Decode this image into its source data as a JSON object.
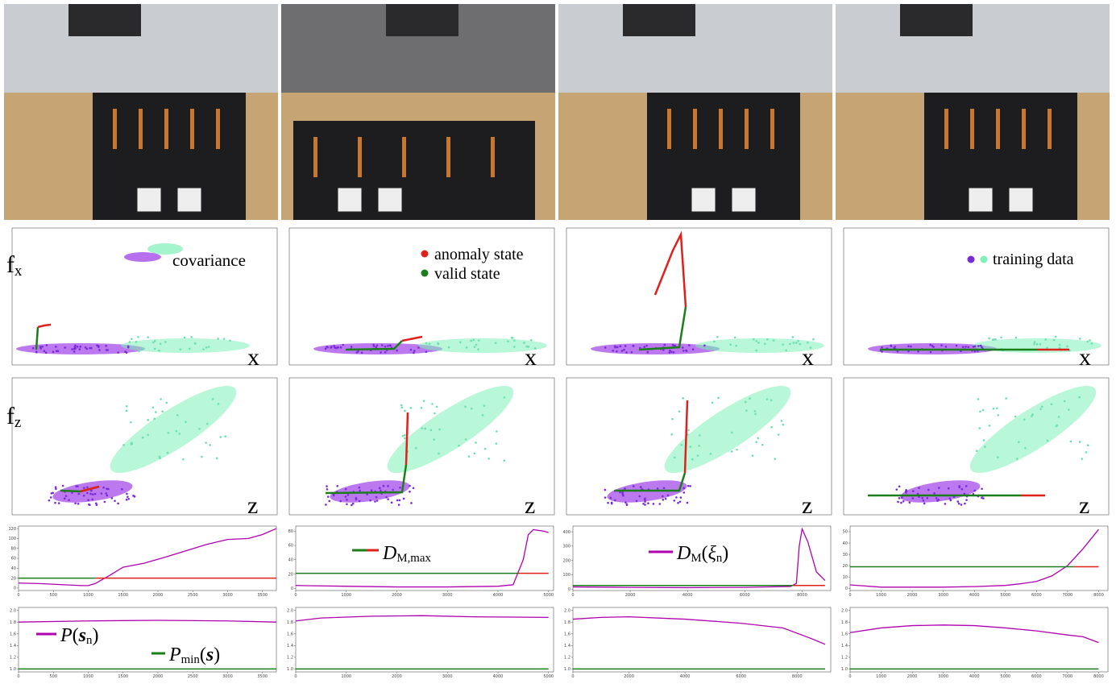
{
  "labels": {
    "fx": [
      {
        "t": "f"
      },
      {
        "sub": "x"
      }
    ],
    "fz": [
      {
        "t": "f"
      },
      {
        "sub": "z"
      }
    ],
    "covariance": "covariance",
    "anomaly": "anomaly state",
    "valid": "valid state",
    "training": "training data",
    "x_axis": "x",
    "z_axis": "z"
  },
  "chart_data": [
    {
      "type": "line",
      "xlim": [
        0,
        3700
      ],
      "ylim": [
        -5,
        125
      ],
      "xticks": [
        0,
        500,
        1000,
        1500,
        2000,
        2500,
        3000,
        3500
      ],
      "yticks": [
        0,
        20,
        40,
        60,
        80,
        100,
        120
      ],
      "series": [
        {
          "color": "#b000b0",
          "x": [
            0,
            300,
            600,
            900,
            1000,
            1100,
            1300,
            1500,
            1800,
            2100,
            2400,
            2700,
            3000,
            3300,
            3500,
            3700
          ],
          "values": [
            10,
            9,
            7,
            5,
            5,
            9,
            25,
            42,
            50,
            62,
            75,
            88,
            98,
            100,
            108,
            120
          ]
        },
        {
          "color": "#1a7f1a",
          "x": [
            0,
            1100
          ],
          "values": [
            20,
            20
          ]
        },
        {
          "color": "#e0201a",
          "x": [
            1100,
            3700
          ],
          "values": [
            20,
            20
          ]
        }
      ]
    },
    {
      "type": "line",
      "xlim": [
        0,
        5100
      ],
      "ylim": [
        -3,
        87
      ],
      "xticks": [
        0,
        1000,
        2000,
        3000,
        4000,
        5000
      ],
      "yticks": [
        0,
        20,
        40,
        60,
        80
      ],
      "legend": [
        {
          "i": "D"
        },
        {
          "sub": "M,max"
        }
      ],
      "series": [
        {
          "color": "#b000b0",
          "x": [
            0,
            1000,
            2000,
            3000,
            4000,
            4300,
            4500,
            4600,
            4700,
            4900,
            5000
          ],
          "values": [
            4,
            3,
            2,
            2,
            3,
            5,
            40,
            75,
            82,
            80,
            78
          ]
        },
        {
          "color": "#1a7f1a",
          "x": [
            0,
            4400
          ],
          "values": [
            21,
            21
          ]
        },
        {
          "color": "#e0201a",
          "x": [
            4400,
            5000
          ],
          "values": [
            21,
            21
          ]
        }
      ]
    },
    {
      "type": "line",
      "xlim": [
        0,
        9000
      ],
      "ylim": [
        -10,
        440
      ],
      "xticks": [
        0,
        2000,
        4000,
        6000,
        8000
      ],
      "yticks": [
        0,
        100,
        200,
        300,
        400
      ],
      "legend": [
        {
          "i": "D"
        },
        {
          "sub": "M"
        },
        {
          "t": "("
        },
        {
          "i": "ξ"
        },
        {
          "sub": "n"
        },
        {
          "t": ")"
        }
      ],
      "series": [
        {
          "color": "#b000b0",
          "x": [
            0,
            2000,
            4000,
            6000,
            7600,
            7800,
            7900,
            8000,
            8200,
            8500,
            8800
          ],
          "values": [
            15,
            12,
            10,
            12,
            18,
            40,
            300,
            420,
            330,
            120,
            60
          ]
        },
        {
          "color": "#1a7f1a",
          "x": [
            0,
            7700
          ],
          "values": [
            25,
            25
          ]
        },
        {
          "color": "#e0201a",
          "x": [
            7700,
            8800
          ],
          "values": [
            25,
            25
          ]
        }
      ]
    },
    {
      "type": "line",
      "xlim": [
        0,
        8300
      ],
      "ylim": [
        -2,
        55
      ],
      "xticks": [
        0,
        1000,
        2000,
        3000,
        4000,
        5000,
        6000,
        7000,
        8000
      ],
      "yticks": [
        0,
        10,
        20,
        30,
        40,
        50
      ],
      "series": [
        {
          "color": "#b000b0",
          "x": [
            0,
            1000,
            2000,
            3000,
            4000,
            5000,
            5500,
            6000,
            6500,
            7000,
            7500,
            8000
          ],
          "values": [
            3,
            1,
            1,
            1,
            1.5,
            2.5,
            4,
            6,
            11,
            20,
            35,
            52
          ]
        },
        {
          "color": "#1a7f1a",
          "x": [
            0,
            7200
          ],
          "values": [
            19,
            19
          ]
        },
        {
          "color": "#e0201a",
          "x": [
            7200,
            8000
          ],
          "values": [
            19,
            19
          ]
        }
      ]
    },
    {
      "type": "line",
      "xlim": [
        0,
        3700
      ],
      "ylim": [
        0.95,
        2.05
      ],
      "xticks": [
        0,
        500,
        1000,
        1500,
        2000,
        2500,
        3000,
        3500
      ],
      "yticks": [
        {
          "value": 1,
          "label": "1.0"
        },
        1.2,
        1.4,
        1.6,
        1.8,
        {
          "value": 2,
          "label": "2.0"
        }
      ],
      "series": [
        {
          "color": "#b000b0",
          "x": [
            0,
            1000,
            2000,
            3000,
            3700
          ],
          "values": [
            1.8,
            1.82,
            1.83,
            1.82,
            1.8
          ],
          "legend": [
            {
              "i": "P"
            },
            {
              "t": "("
            },
            {
              "b": "s"
            },
            {
              "sub": "n"
            },
            {
              "t": ")"
            }
          ]
        },
        {
          "color": "#1a7f1a",
          "x": [
            0,
            3700
          ],
          "values": [
            1,
            1
          ],
          "legend": [
            {
              "i": "P"
            },
            {
              "sub": "min"
            },
            {
              "t": "("
            },
            {
              "b": "s"
            },
            {
              "t": ")"
            }
          ]
        }
      ]
    },
    {
      "type": "line",
      "xlim": [
        0,
        5100
      ],
      "ylim": [
        0.95,
        2.05
      ],
      "xticks": [
        0,
        1000,
        2000,
        3000,
        4000,
        5000
      ],
      "yticks": [
        {
          "value": 1,
          "label": "1.0"
        },
        1.2,
        1.4,
        1.6,
        1.8,
        {
          "value": 2,
          "label": "2.0"
        }
      ],
      "series": [
        {
          "color": "#b000b0",
          "x": [
            0,
            500,
            1500,
            2500,
            3500,
            5000
          ],
          "values": [
            1.82,
            1.87,
            1.9,
            1.91,
            1.89,
            1.88
          ]
        },
        {
          "color": "#1a7f1a",
          "x": [
            0,
            5000
          ],
          "values": [
            1,
            1
          ]
        }
      ]
    },
    {
      "type": "line",
      "xlim": [
        0,
        9200
      ],
      "ylim": [
        0.95,
        2.05
      ],
      "xticks": [
        0,
        2000,
        4000,
        6000,
        8000
      ],
      "yticks": [
        {
          "value": 1,
          "label": "1.0"
        },
        1.2,
        1.4,
        1.6,
        1.8,
        {
          "value": 2,
          "label": "2.0"
        }
      ],
      "series": [
        {
          "color": "#b000b0",
          "x": [
            0,
            1000,
            2000,
            4000,
            6000,
            7500,
            8500,
            9000
          ],
          "values": [
            1.85,
            1.88,
            1.89,
            1.85,
            1.78,
            1.7,
            1.52,
            1.42
          ]
        },
        {
          "color": "#1a7f1a",
          "x": [
            0,
            9000
          ],
          "values": [
            1,
            1
          ]
        }
      ]
    },
    {
      "type": "line",
      "xlim": [
        0,
        8300
      ],
      "ylim": [
        0.95,
        2.05
      ],
      "xticks": [
        0,
        1000,
        2000,
        3000,
        4000,
        5000,
        6000,
        7000,
        8000
      ],
      "yticks": [
        {
          "value": 1,
          "label": "1.0"
        },
        1.2,
        1.4,
        1.6,
        1.8,
        {
          "value": 2,
          "label": "2.0"
        }
      ],
      "series": [
        {
          "color": "#b000b0",
          "x": [
            0,
            1000,
            2000,
            3000,
            4000,
            5000,
            6000,
            7000,
            7500,
            8000
          ],
          "values": [
            1.62,
            1.7,
            1.74,
            1.75,
            1.74,
            1.7,
            1.65,
            1.58,
            1.55,
            1.45
          ]
        },
        {
          "color": "#1a7f1a",
          "x": [
            0,
            8000
          ],
          "values": [
            1,
            1
          ]
        }
      ]
    }
  ]
}
